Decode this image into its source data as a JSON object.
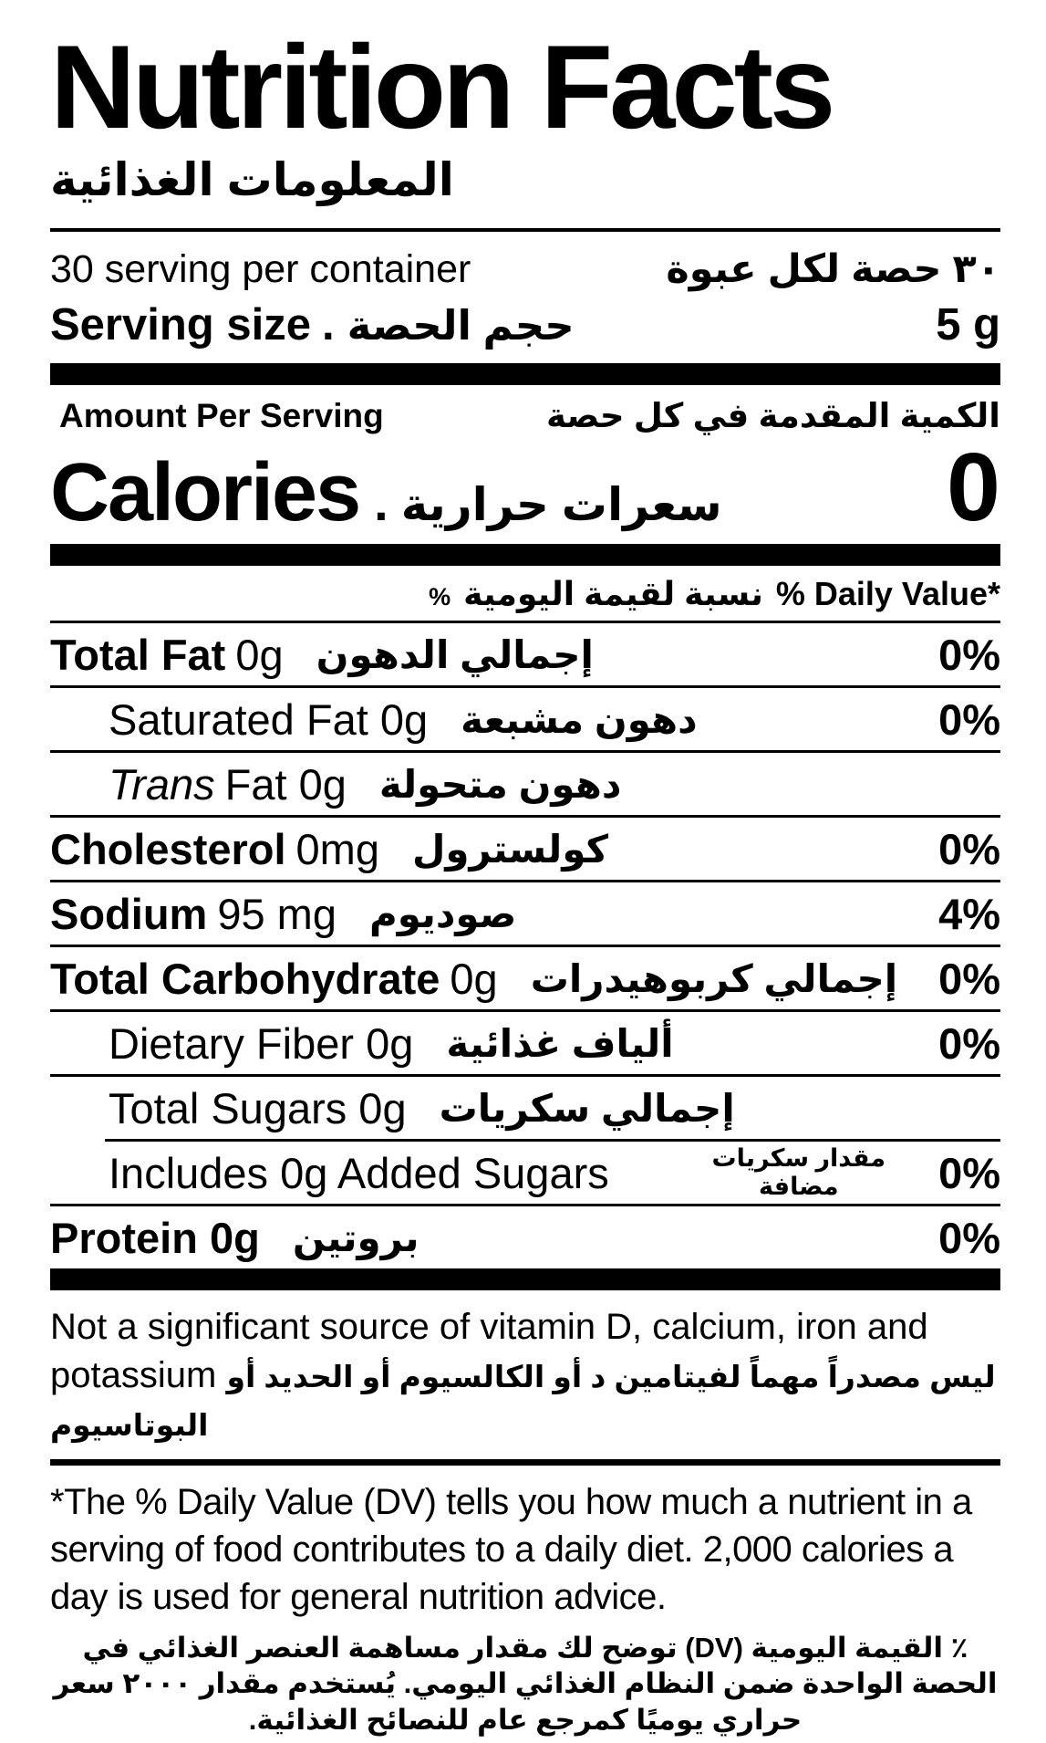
{
  "label": {
    "title_en": "Nutrition Facts",
    "title_ar": "المعلومات الغذائية",
    "servings_per_container_en": "30 serving per container",
    "servings_per_container_ar": "٣٠ حصة لكل عبوة",
    "serving_size_en": "Serving size",
    "dot": ".",
    "serving_size_ar": "حجم الحصة",
    "serving_size_value": "5 g",
    "amount_per_serving_en": "Amount Per Serving",
    "amount_per_serving_ar": "الكمية المقدمة في كل حصة",
    "calories_en": "Calories",
    "calories_ar": "سعرات حرارية",
    "calories_value": "0",
    "dv_header_pct": "%",
    "dv_header_ar": "نسبة لقيمة اليومية",
    "dv_header_en": "% Daily Value*"
  },
  "rows": [
    {
      "bold": "Total Fat",
      "rest": "0g",
      "ar": "إجمالي الدهون",
      "dv": "0%"
    },
    {
      "rest": "Saturated Fat 0g",
      "ar": "دهون مشبعة",
      "dv": "0%"
    },
    {
      "italic": "Trans",
      "rest": "Fat 0g",
      "ar": "دهون متحولة",
      "dv": ""
    },
    {
      "bold": "Cholesterol",
      "rest": "0mg",
      "ar": "كولسترول",
      "dv": "0%"
    },
    {
      "bold": "Sodium",
      "rest": "95 mg",
      "ar": "صوديوم",
      "dv": "4%"
    },
    {
      "bold": "Total Carbohydrate",
      "rest": "0g",
      "ar": "إجمالي كربوهيدرات",
      "dv": "0%"
    },
    {
      "rest": "Dietary Fiber 0g",
      "ar": "ألياف غذائية",
      "dv": "0%"
    },
    {
      "rest": "Total Sugars 0g",
      "ar": "إجمالي سكريات",
      "dv": ""
    },
    {
      "rest": "Includes 0g Added Sugars",
      "ar_line1": "مقدار سكريات",
      "ar_line2": "مضافة",
      "dv": "0%"
    },
    {
      "bold": "Protein 0g",
      "ar": "بروتين",
      "dv": "0%"
    }
  ],
  "notes": {
    "not_significant_en": "Not a significant source of vitamin D, calcium, iron and potassium",
    "not_significant_ar": "ليس مصدراً مهماً لفيتامين د أو الكالسيوم أو الحديد أو البوتاسيوم",
    "footnote_en": "*The % Daily Value (DV) tells you how much a nutrient in a serving of food contributes to a daily diet. 2,000 calories a day is used for general nutrition advice.",
    "footnote_ar": "٪ القيمة اليومية (DV) توضح لك مقدار مساهمة العنصر الغذائي في الحصة الواحدة ضمن النظام الغذائي اليومي. يُستخدم مقدار ٢٠٠٠ سعر حراري يوميًا كمرجع عام للنصائح الغذائية."
  }
}
